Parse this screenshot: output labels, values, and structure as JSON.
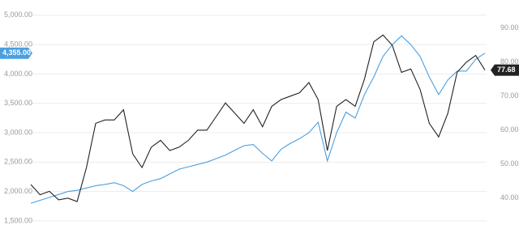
{
  "chart_data": {
    "type": "line",
    "categories": [
      null,
      null,
      null,
      null,
      null,
      null,
      null,
      null,
      null,
      null,
      null,
      null,
      null,
      null,
      null,
      null,
      null,
      null,
      null,
      null,
      null,
      null,
      null,
      null,
      null,
      null,
      null,
      null,
      null,
      null,
      null,
      null,
      null,
      null,
      null,
      null,
      null,
      null,
      null,
      null,
      null,
      null,
      null,
      null,
      null,
      null,
      null,
      null,
      null,
      null
    ],
    "series": [
      {
        "color": "#4a9fe0",
        "values": [
          1800,
          1850,
          1900,
          1950,
          2000,
          2020,
          2060,
          2100,
          2120,
          2150,
          2100,
          2000,
          2120,
          2180,
          2220,
          2300,
          2380,
          2420,
          2460,
          2500,
          2560,
          2620,
          2700,
          2780,
          2800,
          2650,
          2520,
          2720,
          2820,
          2900,
          3000,
          3180,
          2520,
          3000,
          3350,
          3250,
          3650,
          3950,
          4300,
          4500,
          4650,
          4500,
          4300,
          3950,
          3650,
          3900,
          4050,
          4050,
          4250,
          4355
        ],
        "value_labels": [
          null,
          null,
          null,
          null,
          null,
          null,
          null,
          null,
          null,
          null,
          null,
          null,
          null,
          null,
          null,
          null,
          null,
          null,
          null,
          null,
          null,
          null,
          null,
          null,
          null,
          null,
          null,
          null,
          null,
          null,
          null,
          null,
          null,
          null,
          null,
          null,
          null,
          null,
          null,
          null,
          null,
          null,
          null,
          null,
          null,
          null,
          null,
          null,
          null,
          "4,355.00"
        ]
      },
      {
        "color": "#222222",
        "axis": "y2",
        "values": [
          44,
          41,
          42,
          39.5,
          40,
          39,
          49,
          62,
          63,
          63,
          66,
          53,
          49,
          55,
          57,
          54,
          55,
          57,
          60,
          60,
          64,
          68,
          65,
          62,
          66,
          61,
          67,
          69,
          70,
          71,
          74,
          69,
          54,
          67,
          69,
          67,
          75,
          86,
          88,
          85,
          77,
          78,
          72,
          62,
          58,
          65,
          77,
          80,
          82,
          77.68
        ],
        "value_labels": [
          null,
          null,
          null,
          null,
          null,
          null,
          null,
          null,
          null,
          null,
          null,
          null,
          null,
          null,
          null,
          null,
          null,
          null,
          null,
          null,
          null,
          null,
          null,
          null,
          null,
          null,
          null,
          null,
          null,
          null,
          null,
          null,
          null,
          null,
          null,
          null,
          null,
          null,
          null,
          null,
          null,
          null,
          null,
          null,
          null,
          null,
          null,
          null,
          null,
          "77.68"
        ]
      }
    ],
    "ylim": [
      1430,
      5260
    ],
    "yticks": [
      {
        "value": 1500,
        "label": "1,500.00"
      },
      {
        "value": 2000,
        "label": "2,000.00"
      },
      {
        "value": 2500,
        "label": "2,500.00"
      },
      {
        "value": 3000,
        "label": "3,000.00"
      },
      {
        "value": 3500,
        "label": "3,500.00"
      },
      {
        "value": 4000,
        "label": "4,000.00"
      },
      {
        "value": 4500,
        "label": "4,500.00"
      },
      {
        "value": 5000,
        "label": "5,000.00"
      }
    ],
    "y2lim": [
      32.1,
      98.3
    ],
    "y2ticks": [
      {
        "value": 40,
        "label": "40.00"
      },
      {
        "value": 50,
        "label": "50.00"
      },
      {
        "value": 60,
        "label": "60.00"
      },
      {
        "value": 70,
        "label": "70.00"
      },
      {
        "value": 80,
        "label": "80.00"
      },
      {
        "value": 90,
        "label": "90.00"
      }
    ],
    "grid": true
  }
}
